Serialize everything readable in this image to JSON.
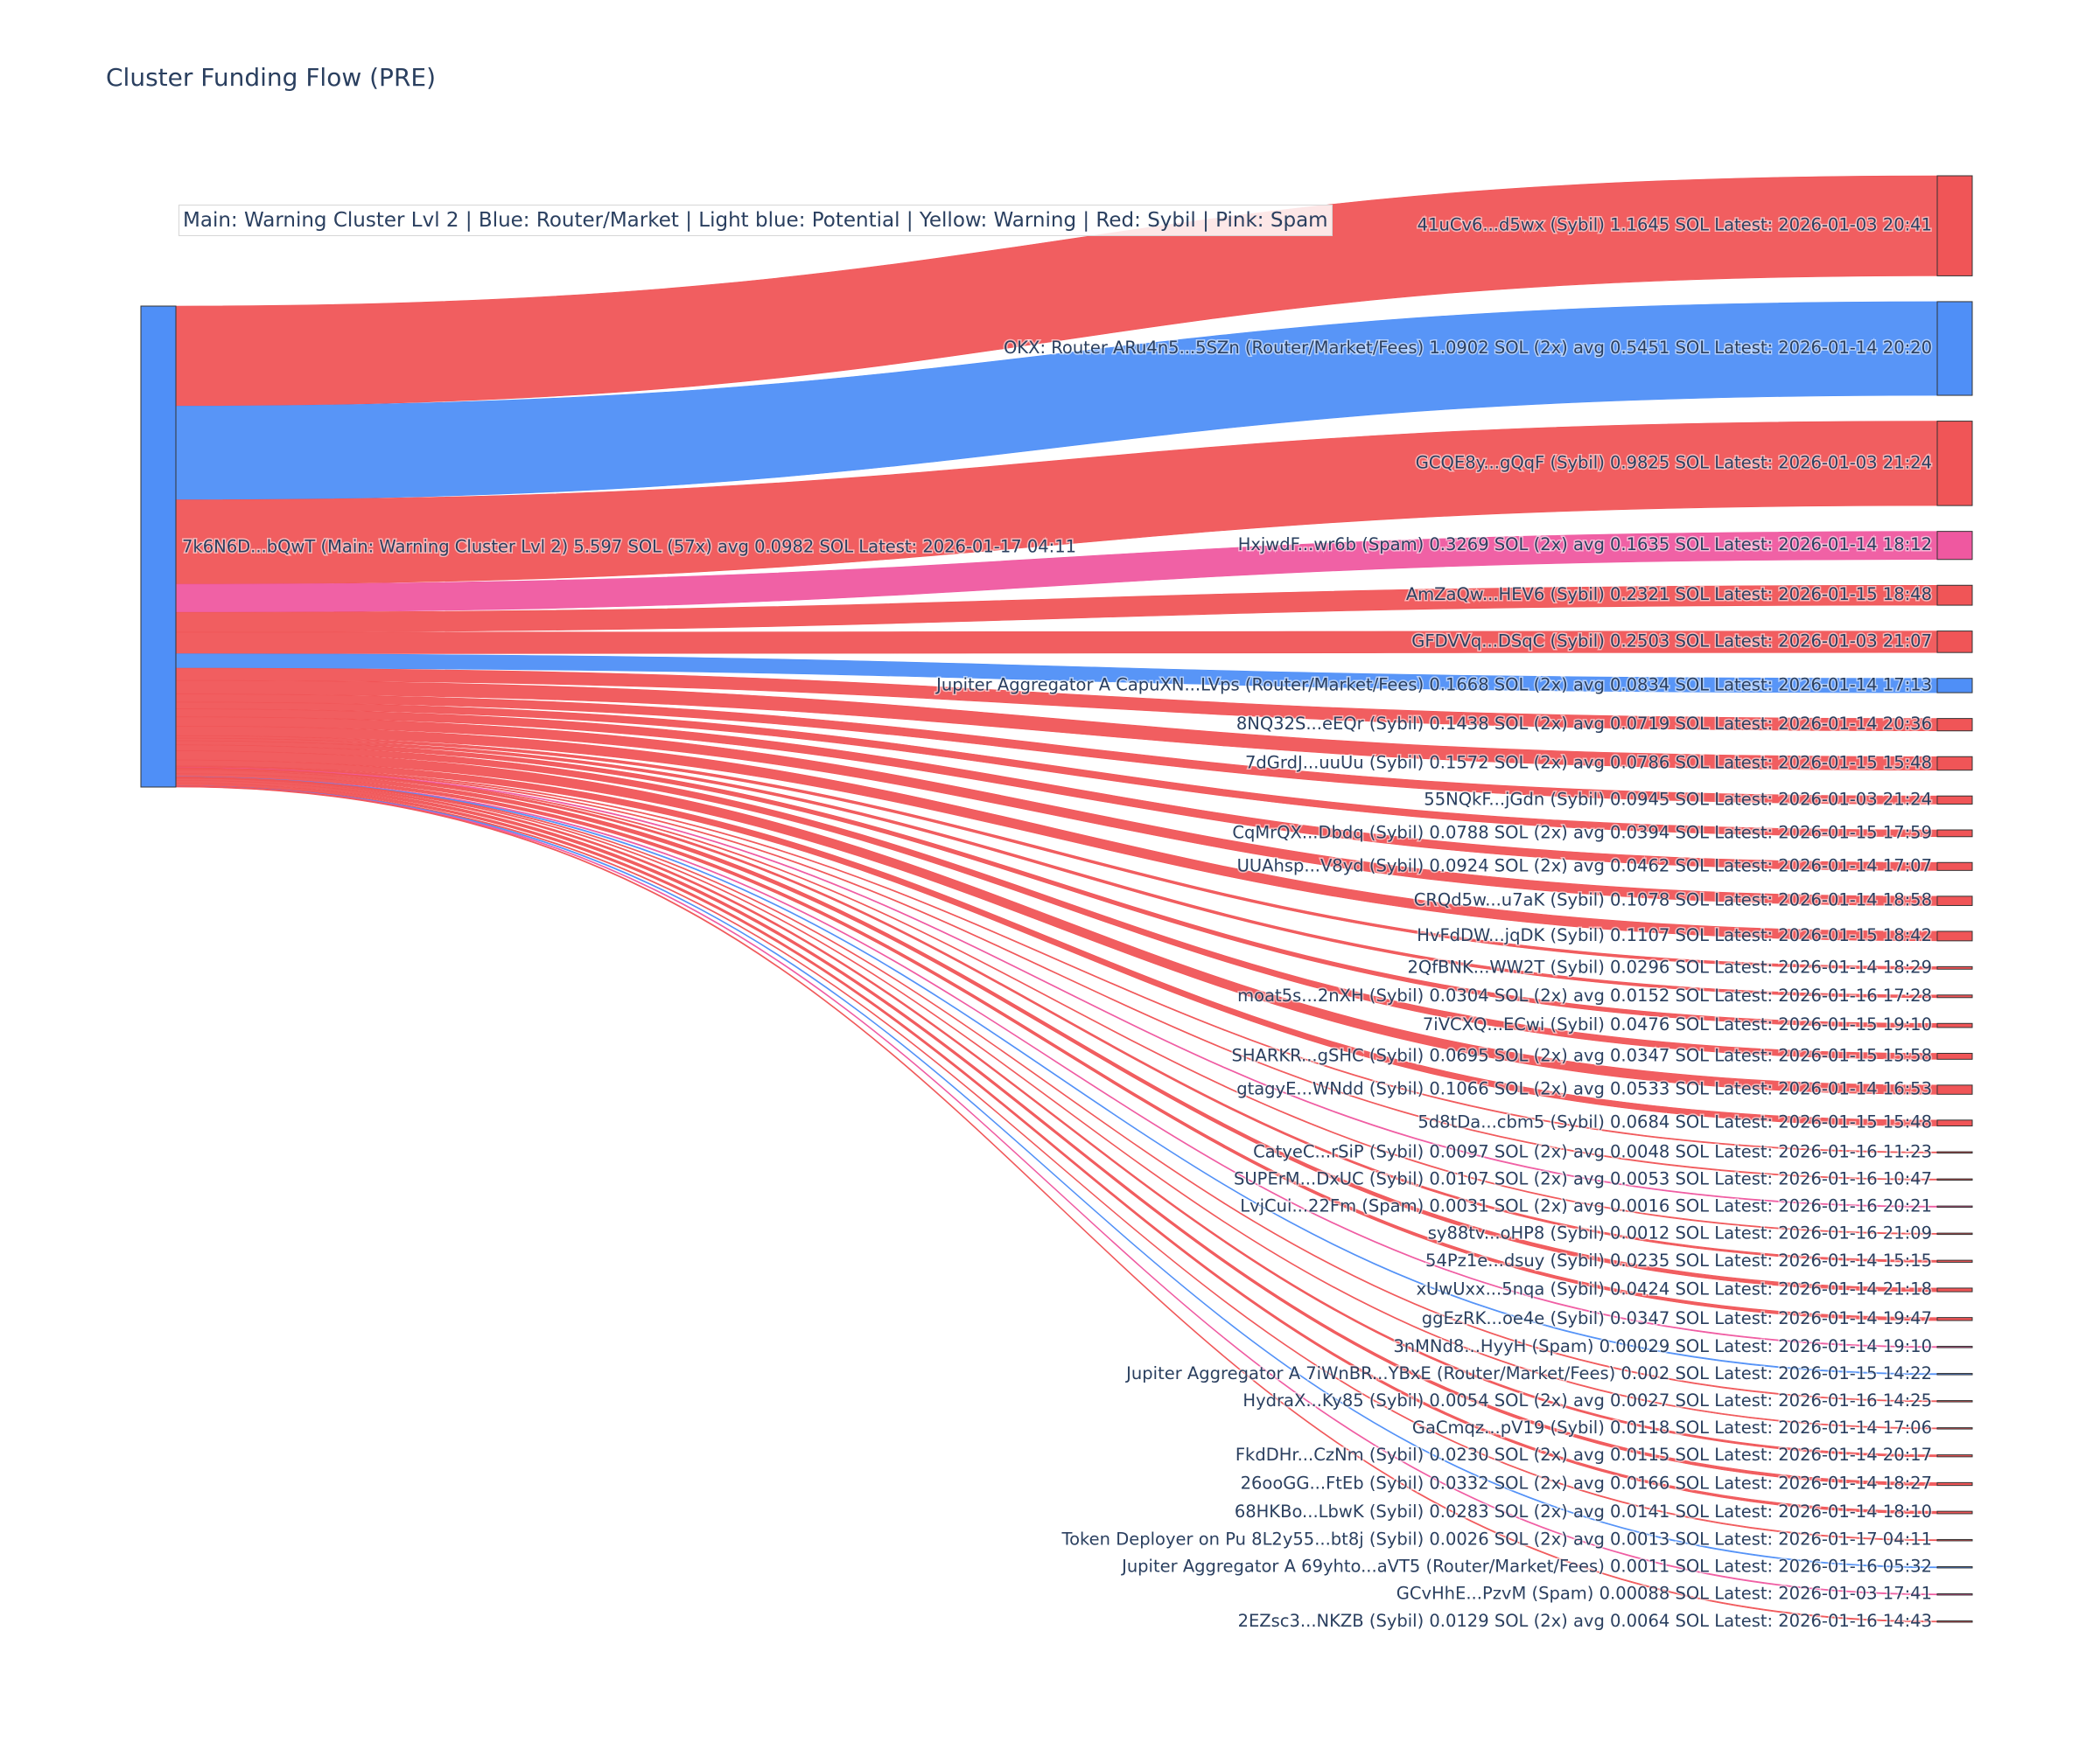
{
  "chart_data": {
    "type": "sankey",
    "title": "Cluster Funding Flow (PRE)",
    "legend_text": "Main: Warning Cluster Lvl 2  |  Blue: Router/Market | Light blue: Potential | Yellow: Warning | Red: Sybil | Pink: Spam",
    "colors": {
      "router": "#4f8ff7",
      "sybil": "#f05557",
      "spam": "#ef58a0",
      "node_outline": "#333333"
    },
    "source": {
      "label": "7k6N6D...bQwT (Main: Warning Cluster Lvl 2) 5.597 SOL (57x) avg 0.0982 SOL Latest: 2026-01-17 04:11",
      "category": "router"
    },
    "targets": [
      {
        "label": "41uCv6...d5wx (Sybil) 1.1645 SOL Latest: 2026-01-03 20:41",
        "value": 1.1645,
        "category": "sybil"
      },
      {
        "label": "OKX: Router ARu4n5...5SZn (Router/Market/Fees) 1.0902 SOL (2x) avg 0.5451 SOL Latest: 2026-01-14 20:20",
        "value": 1.0902,
        "category": "router"
      },
      {
        "label": "GCQE8y...gQqF (Sybil) 0.9825 SOL Latest: 2026-01-03 21:24",
        "value": 0.9825,
        "category": "sybil"
      },
      {
        "label": "HxjwdF...wr6b (Spam) 0.3269 SOL (2x) avg 0.1635 SOL Latest: 2026-01-14 18:12",
        "value": 0.3269,
        "category": "spam"
      },
      {
        "label": "AmZaQw...HEV6 (Sybil) 0.2321 SOL Latest: 2026-01-15 18:48",
        "value": 0.2321,
        "category": "sybil"
      },
      {
        "label": "GFDVVq...DSqC (Sybil) 0.2503 SOL Latest: 2026-01-03 21:07",
        "value": 0.2503,
        "category": "sybil"
      },
      {
        "label": "Jupiter Aggregator A CapuXN...LVps (Router/Market/Fees) 0.1668 SOL (2x) avg 0.0834 SOL Latest: 2026-01-14 17:13",
        "value": 0.1668,
        "category": "router"
      },
      {
        "label": "8NQ32S...eEQr (Sybil) 0.1438 SOL (2x) avg 0.0719 SOL Latest: 2026-01-14 20:36",
        "value": 0.1438,
        "category": "sybil"
      },
      {
        "label": "7dGrdJ...uuUu (Sybil) 0.1572 SOL (2x) avg 0.0786 SOL Latest: 2026-01-15 15:48",
        "value": 0.1572,
        "category": "sybil"
      },
      {
        "label": "55NQkF...jGdn (Sybil) 0.0945 SOL Latest: 2026-01-03 21:24",
        "value": 0.0945,
        "category": "sybil"
      },
      {
        "label": "CqMrQX...Dbdq (Sybil) 0.0788 SOL (2x) avg 0.0394 SOL Latest: 2026-01-15 17:59",
        "value": 0.0788,
        "category": "sybil"
      },
      {
        "label": "UUAhsp...V8yd (Sybil) 0.0924 SOL (2x) avg 0.0462 SOL Latest: 2026-01-14 17:07",
        "value": 0.0924,
        "category": "sybil"
      },
      {
        "label": "CRQd5w...u7aK (Sybil) 0.1078 SOL Latest: 2026-01-14 18:58",
        "value": 0.1078,
        "category": "sybil"
      },
      {
        "label": "HvFdDW...jqDK (Sybil) 0.1107 SOL Latest: 2026-01-15 18:42",
        "value": 0.1107,
        "category": "sybil"
      },
      {
        "label": "2QfBNK...WW2T (Sybil) 0.0296 SOL Latest: 2026-01-14 18:29",
        "value": 0.0296,
        "category": "sybil"
      },
      {
        "label": "moat5s...2nXH (Sybil) 0.0304 SOL (2x) avg 0.0152 SOL Latest: 2026-01-16 17:28",
        "value": 0.0304,
        "category": "sybil"
      },
      {
        "label": "7iVCXQ...ECwi (Sybil) 0.0476 SOL Latest: 2026-01-15 19:10",
        "value": 0.0476,
        "category": "sybil"
      },
      {
        "label": "SHARKR...gSHC (Sybil) 0.0695 SOL (2x) avg 0.0347 SOL Latest: 2026-01-15 15:58",
        "value": 0.0695,
        "category": "sybil"
      },
      {
        "label": "gtagyE...WNdd (Sybil) 0.1066 SOL (2x) avg 0.0533 SOL Latest: 2026-01-14 16:53",
        "value": 0.1066,
        "category": "sybil"
      },
      {
        "label": "5d8tDa...cbm5 (Sybil) 0.0684 SOL Latest: 2026-01-15 15:48",
        "value": 0.0684,
        "category": "sybil"
      },
      {
        "label": "CatyeC...rSiP (Sybil) 0.0097 SOL (2x) avg 0.0048 SOL Latest: 2026-01-16 11:23",
        "value": 0.0097,
        "category": "sybil"
      },
      {
        "label": "SUPErM...DxUC (Sybil) 0.0107 SOL (2x) avg 0.0053 SOL Latest: 2026-01-16 10:47",
        "value": 0.0107,
        "category": "sybil"
      },
      {
        "label": "LvjCui...22Fm (Spam) 0.0031 SOL (2x) avg 0.0016 SOL Latest: 2026-01-16 20:21",
        "value": 0.0031,
        "category": "spam"
      },
      {
        "label": "sy88tv...oHP8 (Sybil) 0.0012 SOL Latest: 2026-01-16 21:09",
        "value": 0.0012,
        "category": "sybil"
      },
      {
        "label": "54Pz1e...dsuy (Sybil) 0.0235 SOL Latest: 2026-01-14 15:15",
        "value": 0.0235,
        "category": "sybil"
      },
      {
        "label": "xUwUxx...5nqa (Sybil) 0.0424 SOL Latest: 2026-01-14 21:18",
        "value": 0.0424,
        "category": "sybil"
      },
      {
        "label": "ggEzRK...oe4e (Sybil) 0.0347 SOL Latest: 2026-01-14 19:47",
        "value": 0.0347,
        "category": "sybil"
      },
      {
        "label": "3nMNd8...HyyH (Spam) 0.00029 SOL Latest: 2026-01-14 19:10",
        "value": 0.00029,
        "category": "spam"
      },
      {
        "label": "Jupiter Aggregator A 7iWnBR...YBxE (Router/Market/Fees) 0.002 SOL Latest: 2026-01-15 14:22",
        "value": 0.002,
        "category": "router"
      },
      {
        "label": "HydraX...Ky85 (Sybil) 0.0054 SOL (2x) avg 0.0027 SOL Latest: 2026-01-16 14:25",
        "value": 0.0054,
        "category": "sybil"
      },
      {
        "label": "GaCmqz...pV19 (Sybil) 0.0118 SOL Latest: 2026-01-14 17:06",
        "value": 0.0118,
        "category": "sybil"
      },
      {
        "label": "FkdDHr...CzNm (Sybil) 0.0230 SOL (2x) avg 0.0115 SOL Latest: 2026-01-14 20:17",
        "value": 0.023,
        "category": "sybil"
      },
      {
        "label": "26ooGG...FtEb (Sybil) 0.0332 SOL (2x) avg 0.0166 SOL Latest: 2026-01-14 18:27",
        "value": 0.0332,
        "category": "sybil"
      },
      {
        "label": "68HKBo...LbwK (Sybil) 0.0283 SOL (2x) avg 0.0141 SOL Latest: 2026-01-14 18:10",
        "value": 0.0283,
        "category": "sybil"
      },
      {
        "label": "Token Deployer on Pu 8L2y55...bt8j (Sybil) 0.0026 SOL (2x) avg 0.0013 SOL Latest: 2026-01-17 04:11",
        "value": 0.0026,
        "category": "sybil"
      },
      {
        "label": "Jupiter Aggregator A 69yhto...aVT5 (Router/Market/Fees) 0.0011 SOL Latest: 2026-01-16 05:32",
        "value": 0.0011,
        "category": "router"
      },
      {
        "label": "GCvHhE...PzvM (Spam) 0.00088 SOL Latest: 2026-01-03 17:41",
        "value": 0.00088,
        "category": "spam"
      },
      {
        "label": "2EZsc3...NKZB (Sybil) 0.0129 SOL (2x) avg 0.0064 SOL Latest: 2026-01-16 14:43",
        "value": 0.0129,
        "category": "sybil"
      }
    ]
  }
}
